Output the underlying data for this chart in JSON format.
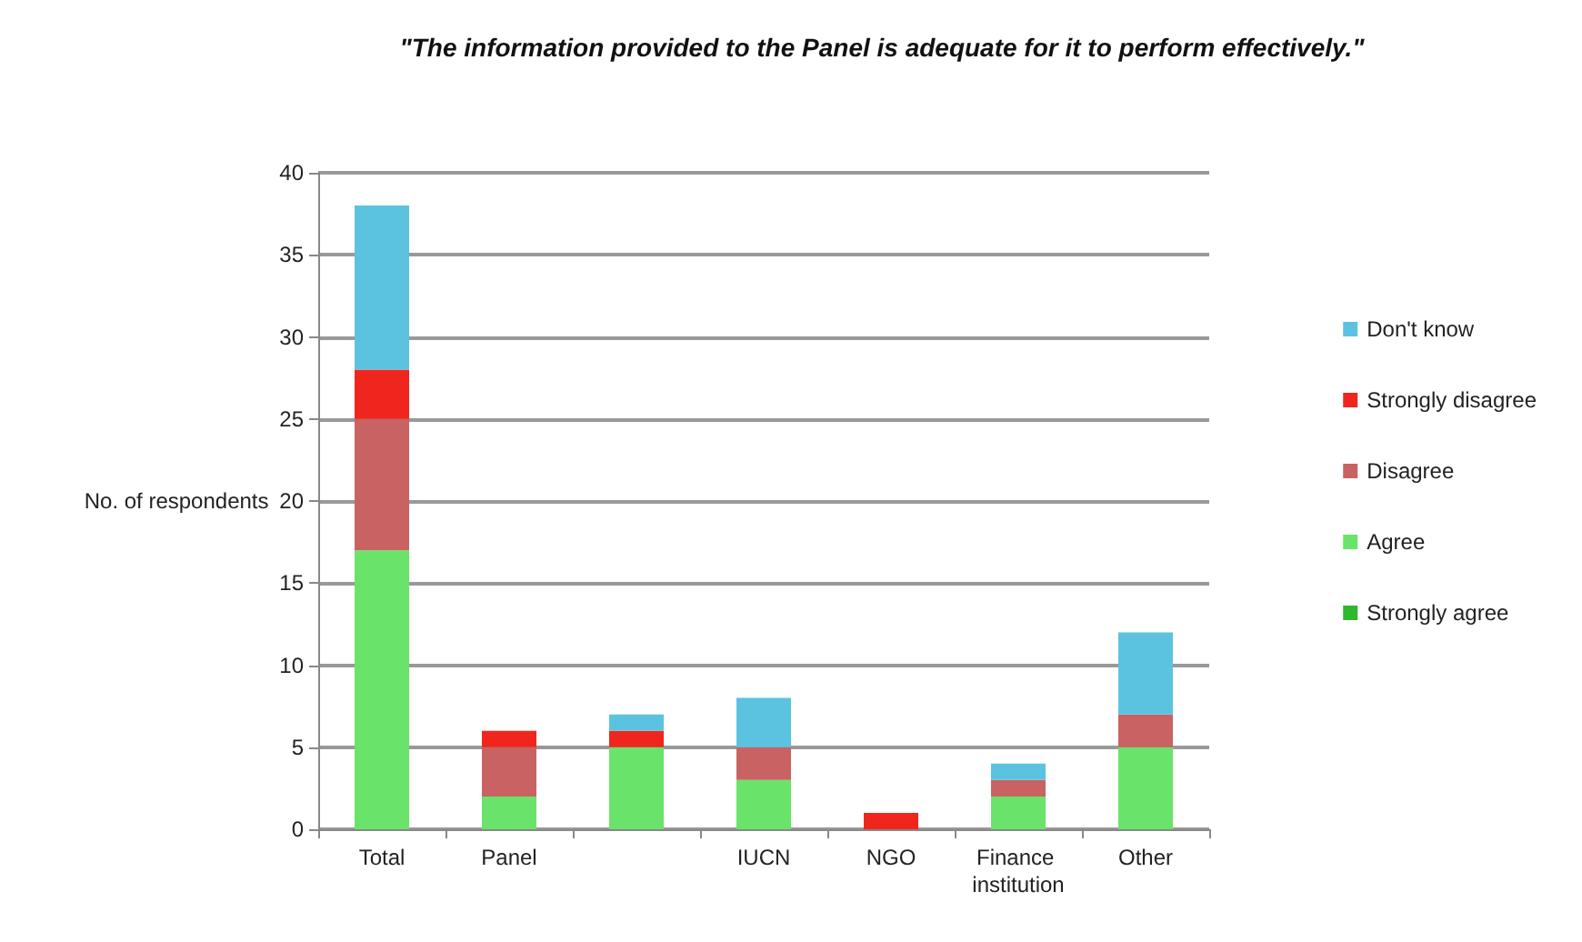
{
  "chart_data": {
    "type": "bar",
    "title": "\"The information provided to the Panel is adequate for it to perform effectively.\"",
    "ylabel": "No. of respondents",
    "categories": [
      "Total",
      "Panel",
      null,
      "IUCN",
      "NGO",
      "Finance institution",
      "Other"
    ],
    "stacked": true,
    "series": [
      {
        "name": "Strongly agree",
        "color": "#2db82d",
        "values": [
          0,
          0,
          0,
          0,
          0,
          0,
          0
        ]
      },
      {
        "name": "Agree",
        "color": "#6ae36a",
        "values": [
          17,
          2,
          5,
          3,
          0,
          2,
          5
        ]
      },
      {
        "name": "Disagree",
        "color": "#c96262",
        "values": [
          8,
          3,
          0,
          2,
          0,
          1,
          2
        ]
      },
      {
        "name": "Strongly disagree",
        "color": "#f0261e",
        "values": [
          3,
          1,
          1,
          0,
          1,
          0,
          0
        ]
      },
      {
        "name": "Don't know",
        "color": "#5bc3e0",
        "values": [
          10,
          0,
          1,
          3,
          0,
          1,
          5
        ]
      }
    ],
    "ylim": [
      0,
      40
    ],
    "yticks": [
      0,
      5,
      10,
      15,
      20,
      25,
      30,
      35,
      40
    ],
    "grid": "y",
    "legend": "right"
  }
}
